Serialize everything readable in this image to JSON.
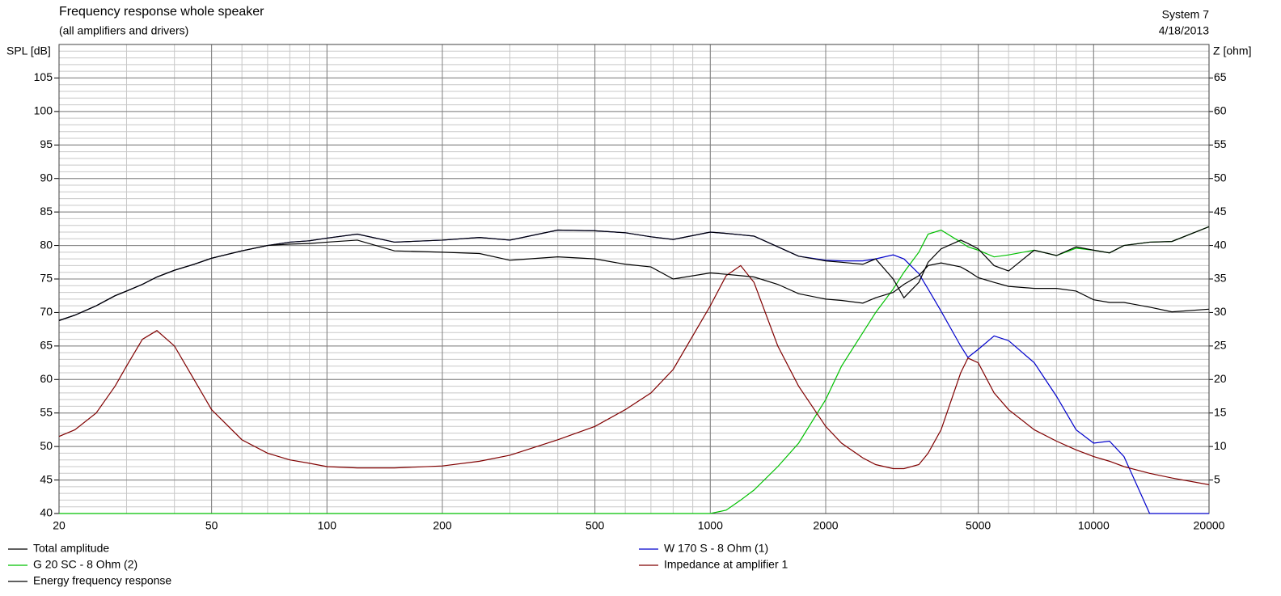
{
  "chart_data": {
    "type": "line",
    "title": "Frequency response whole speaker",
    "subtitle": "(all amplifiers and drivers)",
    "system": "System 7",
    "date": "4/18/2013",
    "ylabel": "SPL [dB]",
    "y2label": "Z [ohm]",
    "log_x": true,
    "grid": true,
    "minor_grid": true,
    "legend": "bottom",
    "x": [
      20,
      22,
      25,
      28,
      30,
      33,
      36,
      40,
      45,
      50,
      60,
      70,
      80,
      90,
      100,
      120,
      150,
      200,
      250,
      300,
      400,
      500,
      600,
      700,
      800,
      1000,
      1100,
      1200,
      1300,
      1500,
      1700,
      2000,
      2200,
      2500,
      2700,
      3000,
      3200,
      3500,
      3700,
      4000,
      4500,
      4700,
      5000,
      5500,
      6000,
      7000,
      8000,
      9000,
      10000,
      11000,
      12000,
      14000,
      16000,
      20000
    ],
    "xlim": [
      20,
      20000
    ],
    "xticks": [
      20,
      50,
      100,
      200,
      500,
      1000,
      2000,
      5000,
      10000,
      20000
    ],
    "ylim": [
      40,
      110
    ],
    "yticks": [
      40,
      45,
      50,
      55,
      60,
      65,
      70,
      75,
      80,
      85,
      90,
      95,
      100,
      105
    ],
    "y2lim": [
      0,
      70
    ],
    "y2ticks": [
      5,
      10,
      15,
      20,
      25,
      30,
      35,
      40,
      45,
      50,
      55,
      60,
      65
    ],
    "series": [
      {
        "name": "Total amplitude",
        "color": "#000000",
        "values": [
          68.8,
          69.6,
          71,
          72.5,
          73.2,
          74.2,
          75.3,
          76.3,
          77.2,
          78.1,
          79.2,
          80,
          80.5,
          80.7,
          81.1,
          81.7,
          80.5,
          80.8,
          81.2,
          80.8,
          82.3,
          82.2,
          81.9,
          81.3,
          80.9,
          82,
          81.8,
          81.6,
          81.4,
          79.8,
          78.4,
          77.7,
          77.5,
          77.2,
          78,
          75,
          72.2,
          74.5,
          77.5,
          79.5,
          80.8,
          80.3,
          79.5,
          77,
          76.2,
          79.3,
          78.5,
          79.8,
          79.3,
          78.9,
          80,
          80.5,
          80.6,
          82.8
        ]
      },
      {
        "name": "W 170 S - 8 Ohm (1)",
        "color": "#0000cc",
        "values": [
          68.8,
          69.6,
          71,
          72.5,
          73.2,
          74.2,
          75.3,
          76.3,
          77.2,
          78.1,
          79.2,
          80,
          80.5,
          80.7,
          81.1,
          81.7,
          80.5,
          80.8,
          81.2,
          80.8,
          82.3,
          82.2,
          81.9,
          81.3,
          80.9,
          82,
          81.8,
          81.6,
          81.4,
          79.8,
          78.4,
          77.8,
          77.7,
          77.7,
          78,
          78.6,
          78,
          75.8,
          73.5,
          70.2,
          65,
          63.3,
          64.5,
          66.5,
          65.8,
          62.5,
          57.5,
          52.5,
          50.5,
          50.8,
          48.5,
          40,
          40,
          40
        ]
      },
      {
        "name": "G 20 SC - 8 Ohm (2)",
        "color": "#00c000",
        "values": [
          40,
          40,
          40,
          40,
          40,
          40,
          40,
          40,
          40,
          40,
          40,
          40,
          40,
          40,
          40,
          40,
          40,
          40,
          40,
          40,
          40,
          40,
          40,
          40,
          40,
          40,
          40.5,
          42,
          43.5,
          47,
          50.5,
          57,
          62,
          67,
          70,
          73.5,
          76,
          79,
          81.7,
          82.3,
          80.5,
          79.8,
          79.3,
          78.3,
          78.6,
          79.3,
          78.5,
          79.6,
          79.3,
          78.9,
          80,
          80.5,
          80.6,
          82.8
        ]
      },
      {
        "name": "Impedance at amplifier 1",
        "color": "#800000",
        "axis": "y2",
        "values": [
          11.5,
          12.5,
          15,
          19,
          22,
          26,
          27.3,
          25,
          20,
          15.5,
          11,
          9,
          8,
          7.5,
          7,
          6.8,
          6.8,
          7.1,
          7.8,
          8.7,
          11,
          13,
          15.5,
          18,
          21.5,
          31,
          35.5,
          37,
          34.5,
          25,
          19,
          13,
          10.5,
          8.3,
          7.3,
          6.7,
          6.7,
          7.3,
          9,
          12.5,
          21,
          23.2,
          22.5,
          18,
          15.5,
          12.5,
          10.8,
          9.5,
          8.5,
          7.8,
          7,
          6,
          5.3,
          4.3
        ]
      },
      {
        "name": "Energy frequency response",
        "color": "#000000",
        "values": [
          68.8,
          69.6,
          71,
          72.5,
          73.2,
          74.2,
          75.3,
          76.3,
          77.2,
          78.1,
          79.2,
          80,
          80.2,
          80.3,
          80.5,
          80.8,
          79.2,
          79,
          78.8,
          77.8,
          78.3,
          78,
          77.2,
          76.8,
          75,
          75.9,
          75.7,
          75.5,
          75.3,
          74.2,
          72.8,
          72,
          71.8,
          71.4,
          72.2,
          73,
          74.2,
          75.5,
          77,
          77.4,
          76.8,
          76.2,
          75.2,
          74.5,
          73.9,
          73.6,
          73.6,
          73.2,
          71.9,
          71.5,
          71.5,
          70.8,
          70.1,
          70.5
        ]
      }
    ]
  }
}
